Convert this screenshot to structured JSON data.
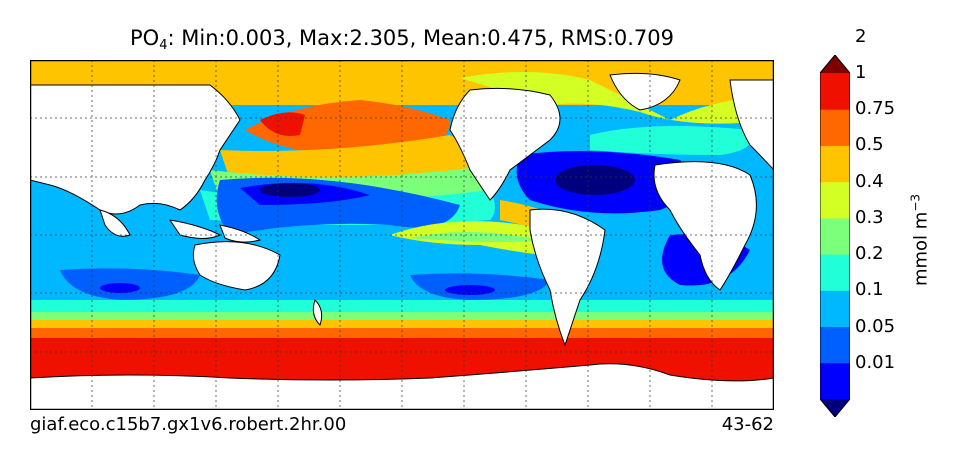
{
  "title": {
    "variable": "PO",
    "subscript": "4",
    "stats": ": Min:0.003, Max:2.305, Mean:0.475, RMS:0.709"
  },
  "footer": {
    "run_id": "giaf.eco.c15b7.gx1v6.robert.2hr.00",
    "years": "43-62"
  },
  "colorbar": {
    "unit_base": "mmol m",
    "unit_exp": "−3",
    "levels": [
      "0.01",
      "0.05",
      "0.1",
      "0.2",
      "0.3",
      "0.4",
      "0.5",
      "0.75",
      "1",
      "2"
    ],
    "colors": [
      "#00007f",
      "#0000ff",
      "#0060ff",
      "#00b8ff",
      "#20ffd8",
      "#7cff7a",
      "#d4ff24",
      "#ffc400",
      "#ff6800",
      "#f01000",
      "#7f0000"
    ]
  }
}
